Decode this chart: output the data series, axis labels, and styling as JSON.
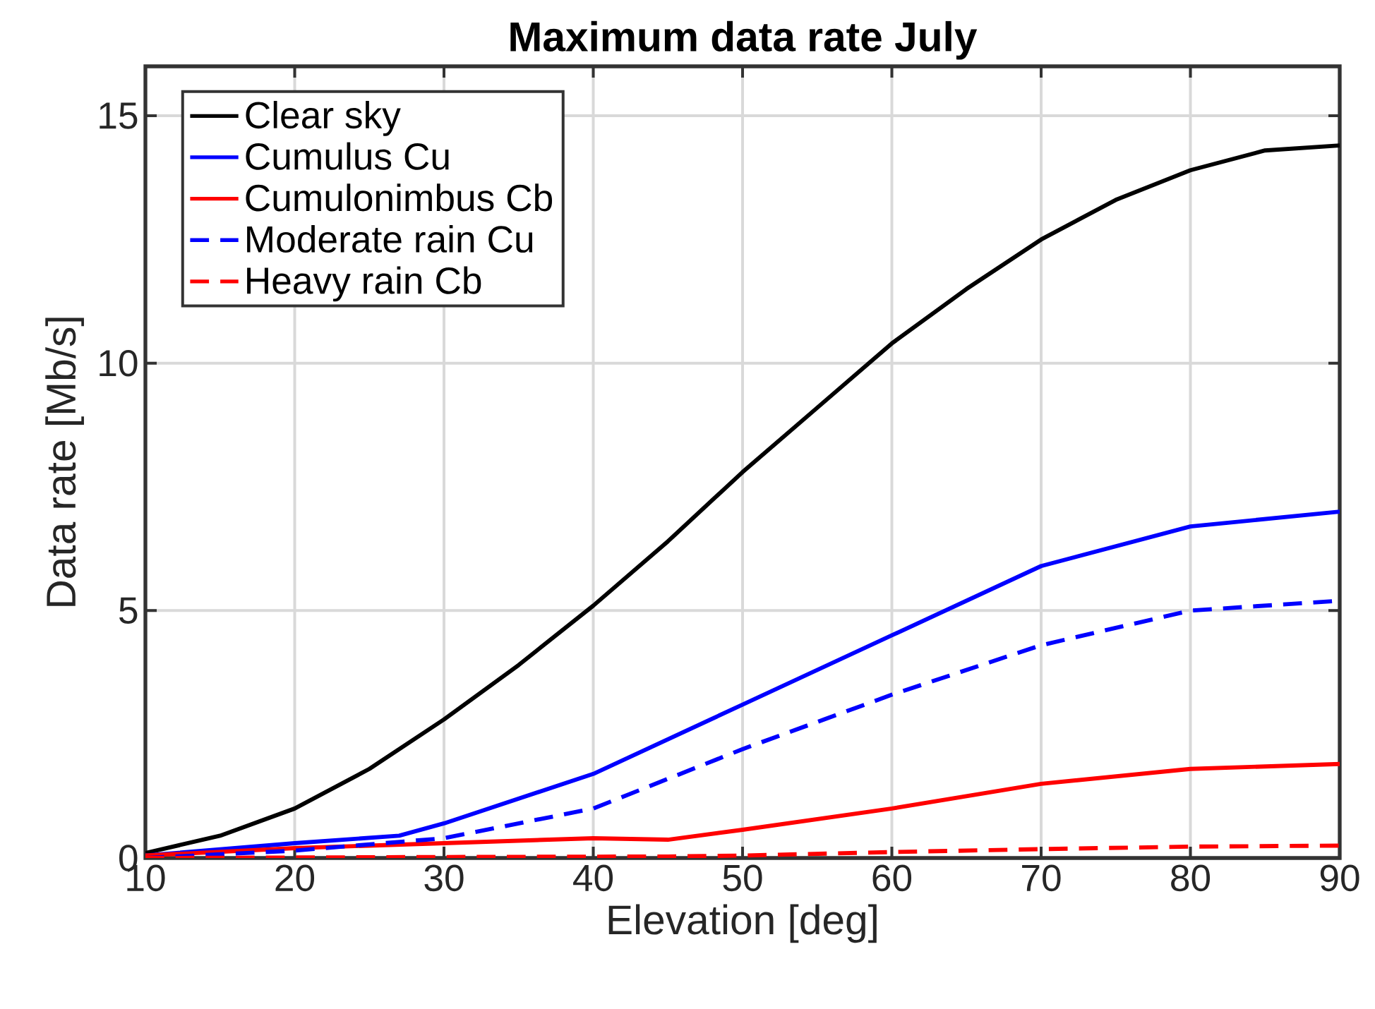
{
  "chart_data": {
    "type": "line",
    "title": "Maximum data rate July",
    "xlabel": "Elevation [deg]",
    "ylabel": "Data rate [Mb/s]",
    "xlim": [
      10,
      90
    ],
    "ylim": [
      0,
      16
    ],
    "xticks": [
      10,
      20,
      30,
      40,
      50,
      60,
      70,
      80,
      90
    ],
    "yticks": [
      0,
      5,
      10,
      15
    ],
    "grid": true,
    "legend": "top left",
    "marker": "none",
    "series": [
      {
        "name": "Clear sky",
        "color": "#000000",
        "line_style": "solid",
        "x": [
          10,
          15,
          20,
          25,
          30,
          35,
          40,
          45,
          50,
          55,
          60,
          65,
          70,
          75,
          80,
          85,
          90
        ],
        "values": [
          0.1,
          0.45,
          1.0,
          1.8,
          2.8,
          3.9,
          5.1,
          6.4,
          7.8,
          9.1,
          10.4,
          11.5,
          12.5,
          13.3,
          13.9,
          14.3,
          14.4
        ]
      },
      {
        "name": "Cumulus Cu",
        "color": "#0000ff",
        "line_style": "solid",
        "x": [
          10,
          20,
          27,
          30,
          40,
          50,
          60,
          70,
          80,
          90
        ],
        "values": [
          0.05,
          0.3,
          0.45,
          0.7,
          1.7,
          3.1,
          4.5,
          5.9,
          6.7,
          7.0
        ]
      },
      {
        "name": "Cumulonimbus Cb",
        "color": "#ff0000",
        "line_style": "solid",
        "x": [
          10,
          20,
          30,
          40,
          45,
          50,
          60,
          70,
          80,
          90
        ],
        "values": [
          0.05,
          0.2,
          0.3,
          0.4,
          0.37,
          0.57,
          1.0,
          1.5,
          1.8,
          1.9
        ]
      },
      {
        "name": "Moderate rain Cu",
        "color": "#0000ff",
        "line_style": "dashed",
        "x": [
          10,
          20,
          30,
          40,
          45,
          50,
          60,
          70,
          80,
          90
        ],
        "values": [
          0.0,
          0.15,
          0.4,
          1.0,
          1.6,
          2.2,
          3.3,
          4.3,
          5.0,
          5.2
        ]
      },
      {
        "name": "Heavy rain Cb",
        "color": "#ff0000",
        "line_style": "dashed",
        "x": [
          10,
          30,
          45,
          50,
          60,
          70,
          80,
          90
        ],
        "values": [
          0.0,
          0.02,
          0.03,
          0.05,
          0.12,
          0.18,
          0.23,
          0.25
        ]
      }
    ]
  }
}
